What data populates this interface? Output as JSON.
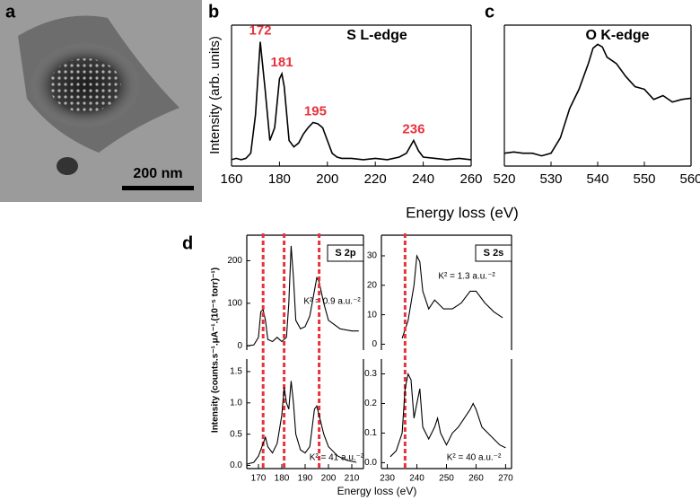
{
  "image": {
    "label": "a",
    "scale_bar": "200 nm"
  },
  "panel_labels": {
    "b": "b",
    "c": "c",
    "d": "d"
  },
  "chart_data": [
    {
      "type": "line",
      "title": "S L-edge",
      "y_label": "Intensity (arb. units)",
      "x_label": "Energy loss (eV)",
      "xlim": [
        160,
        260
      ],
      "xticks": [
        160,
        180,
        200,
        220,
        240,
        260
      ],
      "ylim": [
        0,
        1.1
      ],
      "peak_labels": [
        172,
        181,
        195,
        236
      ],
      "peak_color": "#e8323c",
      "series": [
        {
          "color": "#000000",
          "x": [
            160,
            162,
            164,
            166,
            168,
            170,
            172,
            174,
            176,
            178,
            180,
            181,
            182,
            184,
            186,
            188,
            190,
            192,
            194,
            196,
            198,
            200,
            202,
            204,
            206,
            210,
            215,
            220,
            225,
            230,
            233,
            236,
            238,
            240,
            245,
            250,
            255,
            260
          ],
          "values": [
            0.05,
            0.06,
            0.05,
            0.06,
            0.1,
            0.4,
            0.97,
            0.6,
            0.2,
            0.3,
            0.68,
            0.72,
            0.62,
            0.2,
            0.15,
            0.18,
            0.25,
            0.3,
            0.34,
            0.33,
            0.3,
            0.2,
            0.1,
            0.07,
            0.06,
            0.06,
            0.05,
            0.06,
            0.05,
            0.07,
            0.1,
            0.2,
            0.12,
            0.07,
            0.06,
            0.05,
            0.06,
            0.05
          ]
        }
      ]
    },
    {
      "type": "line",
      "title": "O K-edge",
      "xlim": [
        520,
        560
      ],
      "xticks": [
        520,
        530,
        540,
        550,
        560
      ],
      "ylim": [
        0,
        1.1
      ],
      "series": [
        {
          "color": "#000000",
          "x": [
            520,
            522,
            524,
            526,
            528,
            530,
            532,
            534,
            536,
            538,
            539,
            540,
            541,
            542,
            544,
            546,
            548,
            550,
            552,
            554,
            556,
            558,
            560
          ],
          "values": [
            0.1,
            0.11,
            0.1,
            0.1,
            0.08,
            0.1,
            0.22,
            0.45,
            0.6,
            0.8,
            0.92,
            0.95,
            0.93,
            0.85,
            0.8,
            0.7,
            0.62,
            0.6,
            0.52,
            0.55,
            0.5,
            0.52,
            0.53
          ]
        }
      ]
    },
    {
      "type": "line",
      "title": "S 2p",
      "annotation": "K² = 0.9 a.u.⁻²",
      "xlim": [
        165,
        215
      ],
      "ylim": [
        -10,
        260
      ],
      "yticks": [
        0,
        100,
        200
      ],
      "series": [
        {
          "color": "#000000",
          "x": [
            165,
            168,
            170,
            171,
            172,
            173,
            174,
            176,
            178,
            180,
            182,
            183,
            184,
            185,
            186,
            188,
            190,
            192,
            194,
            195,
            196,
            198,
            200,
            205,
            210,
            213
          ],
          "values": [
            0,
            2,
            20,
            80,
            85,
            60,
            15,
            10,
            20,
            10,
            20,
            100,
            235,
            160,
            60,
            40,
            45,
            70,
            130,
            160,
            150,
            100,
            60,
            40,
            35,
            35
          ]
        }
      ]
    },
    {
      "type": "line",
      "annotation": "K² = 41 a.u.⁻²",
      "y_label": "Intensity (counts.s⁻¹.μA⁻¹.(10⁻⁵ torr)⁻¹)",
      "xlim": [
        165,
        215
      ],
      "xticks": [
        170,
        180,
        190,
        200,
        210
      ],
      "ylim": [
        -0.05,
        1.7
      ],
      "yticks": [
        {
          "value": 0,
          "label": "0.0"
        },
        0.5,
        {
          "value": 1,
          "label": "1.0"
        },
        1.5
      ],
      "reference_lines": [
        172,
        181,
        196
      ],
      "reference_color": "#e8323c",
      "series": [
        {
          "color": "#000000",
          "x": [
            165,
            168,
            170,
            172,
            173,
            174,
            176,
            178,
            180,
            181,
            182,
            183,
            184,
            185,
            186,
            188,
            190,
            192,
            194,
            195,
            196,
            198,
            200,
            204,
            208,
            212
          ],
          "values": [
            0.02,
            0.05,
            0.15,
            0.35,
            0.45,
            0.3,
            0.2,
            0.35,
            0.8,
            1.25,
            1.0,
            0.9,
            1.35,
            1.0,
            0.5,
            0.25,
            0.2,
            0.3,
            0.9,
            0.95,
            0.8,
            0.5,
            0.3,
            0.15,
            0.08,
            0.05
          ]
        }
      ]
    },
    {
      "type": "line",
      "title": "S 2s",
      "annotation": "K² = 1.3 a.u.⁻²",
      "xlim": [
        228,
        272
      ],
      "ylim": [
        -2,
        37
      ],
      "yticks": [
        0,
        10,
        20,
        30
      ],
      "series": [
        {
          "color": "#000000",
          "x": [
            235,
            237,
            239,
            240,
            241,
            242,
            244,
            246,
            247,
            249,
            252,
            255,
            258,
            260,
            263,
            266,
            269
          ],
          "values": [
            2,
            8,
            20,
            30,
            28,
            18,
            12,
            15,
            14,
            12,
            12,
            14,
            18,
            18,
            14,
            11,
            9
          ]
        }
      ]
    },
    {
      "type": "line",
      "annotation": "K² = 40 a.u.⁻²",
      "x_label": "Energy loss (eV)",
      "xlim": [
        228,
        272
      ],
      "xticks": [
        230,
        240,
        250,
        260,
        270
      ],
      "ylim": [
        -0.02,
        0.35
      ],
      "yticks": [
        {
          "value": 0,
          "label": "0.0"
        },
        0.1,
        0.2,
        0.3
      ],
      "reference_lines": [
        236
      ],
      "reference_color": "#e8323c",
      "series": [
        {
          "color": "#000000",
          "x": [
            231,
            233,
            235,
            236,
            237,
            238,
            239,
            240,
            241,
            242,
            244,
            246,
            247,
            248,
            250,
            252,
            254,
            256,
            258,
            259,
            260,
            262,
            264,
            266,
            268,
            270
          ],
          "values": [
            0.02,
            0.04,
            0.1,
            0.25,
            0.3,
            0.28,
            0.15,
            0.2,
            0.25,
            0.12,
            0.08,
            0.12,
            0.15,
            0.1,
            0.06,
            0.1,
            0.12,
            0.15,
            0.18,
            0.2,
            0.18,
            0.12,
            0.1,
            0.08,
            0.06,
            0.05
          ]
        }
      ]
    }
  ]
}
